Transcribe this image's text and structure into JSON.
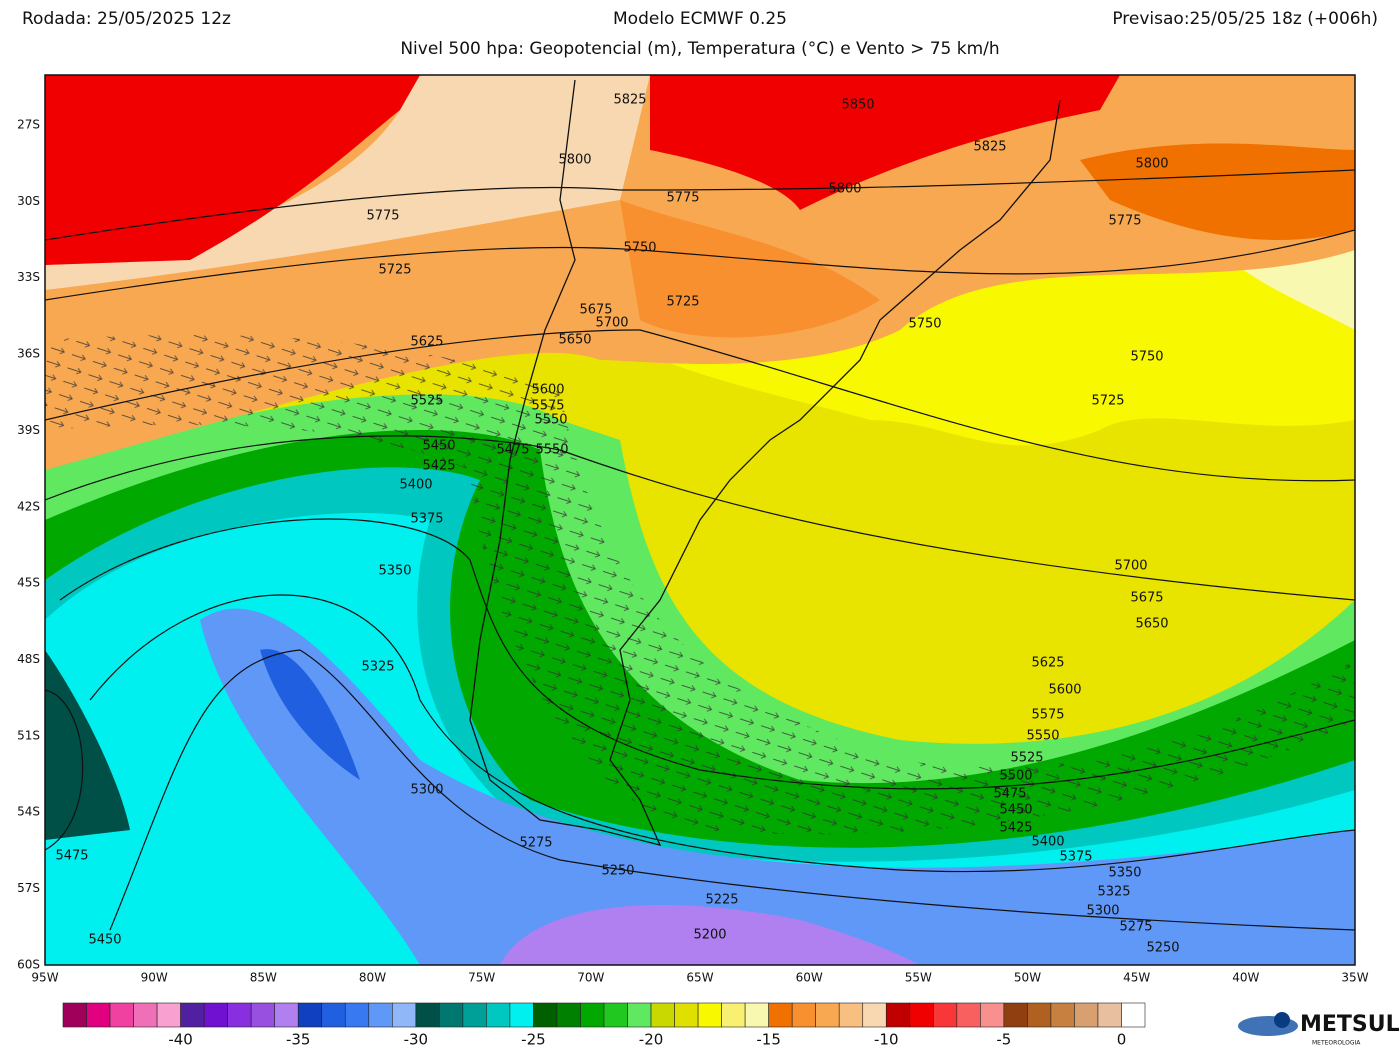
{
  "header": {
    "left": "Rodada: 25/05/2025 12z",
    "center": "Modelo ECMWF 0.25",
    "right": "Previsao:25/05/25 18z (+006h)",
    "subtitle": "Nivel 500 hpa: Geopotencial (m), Temperatura (°C) e Vento > 75 km/h"
  },
  "map": {
    "lat_labels": [
      "27S",
      "30S",
      "33S",
      "36S",
      "39S",
      "42S",
      "45S",
      "48S",
      "51S",
      "54S",
      "57S",
      "60S"
    ],
    "lon_labels": [
      "95W",
      "90W",
      "85W",
      "80W",
      "75W",
      "70W",
      "65W",
      "60W",
      "55W",
      "50W",
      "45W",
      "40W",
      "35W"
    ],
    "contour_labels": [
      "5825",
      "5850",
      "5800",
      "5825",
      "5800",
      "5800",
      "5775",
      "5775",
      "5775",
      "5750",
      "5725",
      "5725",
      "5675",
      "5700",
      "5750",
      "5650",
      "5625",
      "5750",
      "5600",
      "5575",
      "5525",
      "5725",
      "5550",
      "5450",
      "5475",
      "5550",
      "5425",
      "5400",
      "5375",
      "5350",
      "5700",
      "5675",
      "5650",
      "5625",
      "5325",
      "5600",
      "5575",
      "5550",
      "5525",
      "5500",
      "5475",
      "5300",
      "5450",
      "5425",
      "5400",
      "5275",
      "5375",
      "5475",
      "5350",
      "5250",
      "5325",
      "5300",
      "5225",
      "5275",
      "5200",
      "5450",
      "5250"
    ]
  },
  "colorbar": {
    "lim": [
      -45,
      1
    ],
    "ticks": [
      -40,
      -35,
      -30,
      -25,
      -20,
      -15,
      -10,
      -5,
      0
    ],
    "colors": [
      "#a0005a",
      "#e00080",
      "#f040a0",
      "#f070b8",
      "#f8a0d0",
      "#5020a0",
      "#7010d0",
      "#8830e0",
      "#9850e0",
      "#b080f0",
      "#1040c0",
      "#2060e0",
      "#3878f0",
      "#6098f8",
      "#90b8f8",
      "#005048",
      "#007870",
      "#00a098",
      "#00c8c0",
      "#00f0f0",
      "#006000",
      "#008000",
      "#00a800",
      "#20c820",
      "#60e860",
      "#c8d800",
      "#e0e000",
      "#f8f800",
      "#f8f070",
      "#f8f8b0",
      "#f07000",
      "#f89030",
      "#f8a850",
      "#f8c080",
      "#f8d8b0",
      "#c00000",
      "#f00000",
      "#f83838",
      "#f86060",
      "#f89090",
      "#904010",
      "#b06020",
      "#c88040",
      "#d8a070",
      "#e8c0a0",
      "#ffffff"
    ]
  },
  "logo": {
    "name": "METSUL",
    "tagline": "METEOROLOGIA"
  }
}
